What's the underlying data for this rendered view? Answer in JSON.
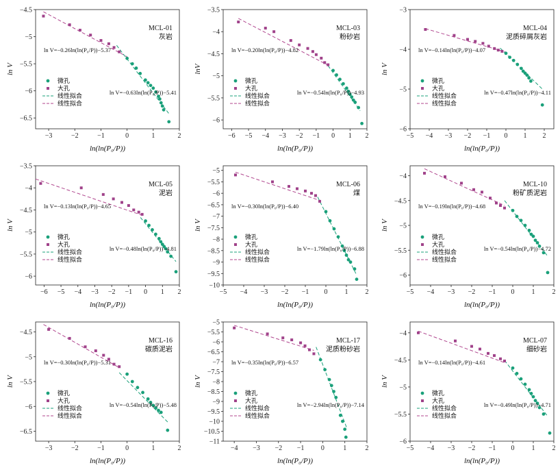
{
  "colors": {
    "micro": "#1aa07a",
    "macro": "#a0428a",
    "fit_micro": "#1aa07a",
    "fit_macro": "#b0468e",
    "axis": "#222222"
  },
  "legend": {
    "micro": "微孔",
    "macro": "大孔",
    "fit1": "线性拟合",
    "fit2": "线性拟合"
  },
  "chart_data": [
    {
      "id": "MCL-01",
      "name": "MCL-01",
      "lithology": "灰岩",
      "type": "scatter",
      "xlabel": "ln(ln(P₀/P))",
      "ylabel": "ln V",
      "xlim": [
        -3.5,
        2
      ],
      "ylim": [
        -6.7,
        -4.5
      ],
      "xticks": [
        -3,
        -2,
        -1,
        0,
        1,
        2
      ],
      "yticks": [
        -6.5,
        -6.0,
        -5.5,
        -5.0,
        -4.5
      ],
      "eq_macro": "ln V=−0.26ln(ln(P₀/P))−5.37",
      "eq_micro": "ln V=−0.63ln(ln(P₀/P))−5.41",
      "macro_points": [
        [
          -3.2,
          -4.62
        ],
        [
          -2.2,
          -4.78
        ],
        [
          -1.8,
          -4.88
        ],
        [
          -1.4,
          -4.97
        ],
        [
          -1.0,
          -5.07
        ],
        [
          -0.7,
          -5.13
        ],
        [
          -0.5,
          -5.2
        ],
        [
          -0.3,
          -5.28
        ]
      ],
      "micro_points": [
        [
          0.0,
          -5.4
        ],
        [
          0.2,
          -5.5
        ],
        [
          0.35,
          -5.58
        ],
        [
          0.5,
          -5.68
        ],
        [
          0.7,
          -5.8
        ],
        [
          0.8,
          -5.85
        ],
        [
          0.9,
          -5.9
        ],
        [
          1.0,
          -5.95
        ],
        [
          1.1,
          -6.02
        ],
        [
          1.2,
          -6.1
        ],
        [
          1.25,
          -6.15
        ],
        [
          1.3,
          -6.22
        ],
        [
          1.35,
          -6.28
        ],
        [
          1.4,
          -6.35
        ],
        [
          1.6,
          -6.57
        ]
      ],
      "fit_macro": [
        [
          -3.2,
          -4.54
        ],
        [
          0.0,
          -5.37
        ]
      ],
      "fit_micro": [
        [
          -0.4,
          -5.16
        ],
        [
          1.6,
          -6.42
        ]
      ]
    },
    {
      "id": "MCL-03",
      "name": "MCL-03",
      "lithology": "粉砂岩",
      "type": "scatter",
      "xlabel": "ln(ln(P₀/P))",
      "ylabel": "lnV",
      "xlim": [
        -6.5,
        2
      ],
      "ylim": [
        -6.2,
        -3.5
      ],
      "xticks": [
        -6,
        -5,
        -4,
        -3,
        -2,
        -1,
        0,
        1,
        2
      ],
      "yticks": [
        -6.0,
        -5.5,
        -5.0,
        -4.5,
        -4.0,
        -3.5
      ],
      "eq_macro": "ln V=−0.20ln(ln(P₀/P))−4.82",
      "eq_micro": "ln V=−0.54ln(ln(P₀/P))−4.93",
      "macro_points": [
        [
          -5.6,
          -3.78
        ],
        [
          -4.0,
          -3.92
        ],
        [
          -3.5,
          -4.0
        ],
        [
          -2.5,
          -4.2
        ],
        [
          -2.0,
          -4.3
        ],
        [
          -1.5,
          -4.38
        ],
        [
          -1.2,
          -4.45
        ],
        [
          -1.0,
          -4.52
        ],
        [
          -0.7,
          -4.6
        ],
        [
          -0.5,
          -4.7
        ],
        [
          -0.3,
          -4.75
        ]
      ],
      "micro_points": [
        [
          0.0,
          -4.88
        ],
        [
          0.2,
          -4.98
        ],
        [
          0.4,
          -5.08
        ],
        [
          0.6,
          -5.18
        ],
        [
          0.8,
          -5.28
        ],
        [
          0.9,
          -5.35
        ],
        [
          1.0,
          -5.42
        ],
        [
          1.1,
          -5.48
        ],
        [
          1.2,
          -5.55
        ],
        [
          1.3,
          -5.6
        ],
        [
          1.5,
          -5.72
        ],
        [
          1.7,
          -6.08
        ]
      ],
      "fit_macro": [
        [
          -5.6,
          -3.7
        ],
        [
          -0.3,
          -4.76
        ]
      ],
      "fit_micro": [
        [
          -0.3,
          -4.77
        ],
        [
          1.6,
          -5.79
        ]
      ]
    },
    {
      "id": "MCL-04",
      "name": "MCL-04",
      "lithology": "泥质碎屑灰岩",
      "type": "scatter",
      "xlabel": "ln(ln(P₀/P))",
      "ylabel": "ln V",
      "xlim": [
        -5,
        2.5
      ],
      "ylim": [
        -6,
        -3
      ],
      "xticks": [
        -5,
        -4,
        -3,
        -2,
        -1,
        0,
        1,
        2
      ],
      "yticks": [
        -6,
        -5,
        -4,
        -3
      ],
      "eq_macro": "ln V=−0.14ln(ln(P₀/P))−4.07",
      "eq_micro": "ln V=−0.47ln(ln(P₀/P))−4.11",
      "macro_points": [
        [
          -4.2,
          -3.5
        ],
        [
          -2.7,
          -3.65
        ],
        [
          -2.0,
          -3.75
        ],
        [
          -1.6,
          -3.8
        ],
        [
          -1.2,
          -3.85
        ],
        [
          -0.9,
          -3.92
        ],
        [
          -0.6,
          -3.98
        ],
        [
          -0.4,
          -4.02
        ],
        [
          -0.2,
          -4.05
        ]
      ],
      "micro_points": [
        [
          0.0,
          -4.1
        ],
        [
          0.2,
          -4.2
        ],
        [
          0.4,
          -4.28
        ],
        [
          0.6,
          -4.38
        ],
        [
          0.8,
          -4.48
        ],
        [
          0.9,
          -4.55
        ],
        [
          1.0,
          -4.6
        ],
        [
          1.1,
          -4.65
        ],
        [
          1.2,
          -4.72
        ],
        [
          1.3,
          -4.8
        ],
        [
          1.9,
          -5.4
        ]
      ],
      "fit_macro": [
        [
          -4.2,
          -3.48
        ],
        [
          0.0,
          -4.07
        ]
      ],
      "fit_micro": [
        [
          -0.3,
          -3.97
        ],
        [
          1.9,
          -5.0
        ]
      ]
    },
    {
      "id": "MCL-05",
      "name": "MCL-05",
      "lithology": "泥岩",
      "type": "scatter",
      "xlabel": "ln(ln(P₀/P))",
      "ylabel": "ln V",
      "xlim": [
        -6.5,
        2
      ],
      "ylim": [
        -6.2,
        -3.5
      ],
      "xticks": [
        -6,
        -5,
        -4,
        -3,
        -2,
        -1,
        0,
        1,
        2
      ],
      "yticks": [
        -6.0,
        -5.5,
        -5.0,
        -4.5,
        -4.0,
        -3.5
      ],
      "eq_macro": "ln V=−0.13ln(ln(P₀/P))−4.65",
      "eq_micro": "ln V=−0.48ln(ln(P₀/P))−4.81",
      "macro_points": [
        [
          -6.2,
          -3.9
        ],
        [
          -3.8,
          -4.0
        ],
        [
          -2.5,
          -4.15
        ],
        [
          -1.9,
          -4.25
        ],
        [
          -1.4,
          -4.33
        ],
        [
          -1.0,
          -4.4
        ],
        [
          -0.7,
          -4.5
        ],
        [
          -0.4,
          -4.55
        ],
        [
          -0.2,
          -4.6
        ]
      ],
      "micro_points": [
        [
          0.0,
          -4.75
        ],
        [
          0.2,
          -4.85
        ],
        [
          0.4,
          -4.95
        ],
        [
          0.6,
          -5.05
        ],
        [
          0.8,
          -5.15
        ],
        [
          0.9,
          -5.22
        ],
        [
          1.0,
          -5.28
        ],
        [
          1.1,
          -5.33
        ],
        [
          1.2,
          -5.38
        ],
        [
          1.3,
          -5.45
        ],
        [
          1.5,
          -5.55
        ],
        [
          1.8,
          -5.9
        ]
      ],
      "fit_macro": [
        [
          -6.5,
          -3.8
        ],
        [
          -0.2,
          -4.62
        ]
      ],
      "fit_micro": [
        [
          -0.3,
          -4.67
        ],
        [
          1.8,
          -5.67
        ]
      ]
    },
    {
      "id": "MCL-06",
      "name": "MCL-06",
      "lithology": "煤",
      "type": "scatter",
      "xlabel": "ln(ln(P₀/P))",
      "ylabel": "ln V",
      "xlim": [
        -5,
        2
      ],
      "ylim": [
        -10,
        -4.8
      ],
      "xticks": [
        -5,
        -4,
        -3,
        -2,
        -1,
        0,
        1,
        2
      ],
      "yticks": [
        -10.0,
        -9.5,
        -9.0,
        -8.5,
        -8.0,
        -7.5,
        -7.0,
        -6.5,
        -6.0,
        -5.5,
        -5.0
      ],
      "eq_macro": "ln V=−0.30ln(ln(P₀/P))−6.40",
      "eq_micro": "ln V=−1.79ln(ln(P₀/P))−6.88",
      "macro_points": [
        [
          -4.4,
          -5.2
        ],
        [
          -2.6,
          -5.5
        ],
        [
          -1.8,
          -5.7
        ],
        [
          -1.4,
          -5.8
        ],
        [
          -1.0,
          -5.9
        ],
        [
          -0.7,
          -6.0
        ],
        [
          -0.5,
          -6.1
        ],
        [
          -0.3,
          -6.35
        ]
      ],
      "micro_points": [
        [
          0.0,
          -6.8
        ],
        [
          0.2,
          -7.2
        ],
        [
          0.4,
          -7.55
        ],
        [
          0.6,
          -7.9
        ],
        [
          0.8,
          -8.3
        ],
        [
          0.9,
          -8.5
        ],
        [
          1.0,
          -8.7
        ],
        [
          1.1,
          -8.9
        ],
        [
          1.2,
          -9.0
        ],
        [
          1.4,
          -9.3
        ],
        [
          1.5,
          -9.75
        ]
      ],
      "fit_macro": [
        [
          -4.4,
          -5.08
        ],
        [
          -0.4,
          -6.28
        ]
      ],
      "fit_micro": [
        [
          -0.4,
          -6.16
        ],
        [
          1.5,
          -9.57
        ]
      ]
    },
    {
      "id": "MCL-10",
      "name": "MCL-10",
      "lithology": "粉矿质泥岩",
      "type": "scatter",
      "xlabel": "ln(ln(P₀/P))",
      "ylabel": "ln V",
      "xlim": [
        -5,
        2
      ],
      "ylim": [
        -6.2,
        -3.8
      ],
      "xticks": [
        -5,
        -4,
        -3,
        -2,
        -1,
        0,
        1,
        2
      ],
      "yticks": [
        -6.0,
        -5.5,
        -5.0,
        -4.5,
        -4.0
      ],
      "eq_macro": "ln V=−0.19ln(ln(P₀/P))−4.68",
      "eq_micro": "ln V=−0.54ln(ln(P₀/P))−4.72",
      "macro_points": [
        [
          -4.3,
          -3.95
        ],
        [
          -3.3,
          -4.02
        ],
        [
          -2.5,
          -4.15
        ],
        [
          -1.9,
          -4.28
        ],
        [
          -1.5,
          -4.33
        ],
        [
          -1.1,
          -4.45
        ],
        [
          -0.8,
          -4.55
        ],
        [
          -0.6,
          -4.6
        ],
        [
          -0.4,
          -4.65
        ]
      ],
      "micro_points": [
        [
          0.0,
          -4.7
        ],
        [
          0.2,
          -4.82
        ],
        [
          0.4,
          -4.9
        ],
        [
          0.6,
          -5.0
        ],
        [
          0.8,
          -5.1
        ],
        [
          0.9,
          -5.18
        ],
        [
          1.0,
          -5.22
        ],
        [
          1.1,
          -5.3
        ],
        [
          1.2,
          -5.35
        ],
        [
          1.3,
          -5.42
        ],
        [
          1.5,
          -5.55
        ],
        [
          1.7,
          -5.95
        ]
      ],
      "fit_macro": [
        [
          -4.3,
          -3.86
        ],
        [
          -0.4,
          -4.6
        ]
      ],
      "fit_micro": [
        [
          -0.4,
          -4.5
        ],
        [
          1.7,
          -5.62
        ]
      ]
    },
    {
      "id": "MCL-16",
      "name": "MCL-16",
      "lithology": "碳质泥岩",
      "type": "scatter",
      "xlabel": "ln(ln(P₀/P))",
      "ylabel": "ln V",
      "xlim": [
        -3.5,
        2
      ],
      "ylim": [
        -6.7,
        -4.3
      ],
      "xticks": [
        -3,
        -2,
        -1,
        0,
        1,
        2
      ],
      "yticks": [
        -6.5,
        -6.0,
        -5.5,
        -5.0,
        -4.5
      ],
      "eq_macro": "ln V=−0.30ln(ln(P₀/P))−5.31",
      "eq_micro": "ln V=−0.54ln(ln(P₀/P))−5.48",
      "macro_points": [
        [
          -3.0,
          -4.45
        ],
        [
          -2.2,
          -4.63
        ],
        [
          -1.6,
          -4.8
        ],
        [
          -1.2,
          -4.88
        ],
        [
          -0.9,
          -4.97
        ],
        [
          -0.7,
          -5.05
        ],
        [
          -0.5,
          -5.15
        ],
        [
          -0.3,
          -5.2
        ]
      ],
      "micro_points": [
        [
          0.0,
          -5.35
        ],
        [
          0.2,
          -5.5
        ],
        [
          0.4,
          -5.62
        ],
        [
          0.6,
          -5.72
        ],
        [
          0.8,
          -5.85
        ],
        [
          0.9,
          -5.92
        ],
        [
          1.0,
          -5.98
        ],
        [
          1.1,
          -6.03
        ],
        [
          1.2,
          -6.08
        ],
        [
          1.3,
          -6.12
        ],
        [
          1.55,
          -6.48
        ]
      ],
      "fit_macro": [
        [
          -3.2,
          -4.35
        ],
        [
          -0.3,
          -5.22
        ]
      ],
      "fit_micro": [
        [
          -0.3,
          -5.32
        ],
        [
          1.6,
          -6.34
        ]
      ]
    },
    {
      "id": "MCL-17",
      "name": "MCL-17",
      "lithology": "泥质粉砂岩",
      "type": "scatter",
      "xlabel": "ln(ln(P₀/P))",
      "ylabel": "ln V",
      "xlim": [
        -4.5,
        2
      ],
      "ylim": [
        -11,
        -5
      ],
      "xticks": [
        -4,
        -3,
        -2,
        -1,
        0,
        1,
        2
      ],
      "yticks": [
        -11.0,
        -10.5,
        -10.0,
        -9.5,
        -9.0,
        -8.5,
        -8.0,
        -7.5,
        -7.0,
        -6.5,
        -6.0,
        -5.5,
        -5.0
      ],
      "eq_macro": "ln V=−0.35ln(ln(P₀/P))−6.57",
      "eq_micro": "ln V=−2.94ln(ln(P₀/P))−7.14",
      "macro_points": [
        [
          -4.0,
          -5.3
        ],
        [
          -2.5,
          -5.6
        ],
        [
          -1.8,
          -5.8
        ],
        [
          -1.4,
          -5.9
        ],
        [
          -1.0,
          -6.05
        ],
        [
          -0.8,
          -6.2
        ],
        [
          -0.6,
          -6.4
        ],
        [
          -0.4,
          -6.6
        ]
      ],
      "micro_points": [
        [
          -0.1,
          -6.9
        ],
        [
          0.1,
          -7.4
        ],
        [
          0.3,
          -7.9
        ],
        [
          0.4,
          -8.2
        ],
        [
          0.5,
          -8.5
        ],
        [
          0.6,
          -8.8
        ],
        [
          0.8,
          -9.7
        ],
        [
          0.9,
          -10.0
        ],
        [
          1.0,
          -10.4
        ],
        [
          1.05,
          -10.8
        ]
      ],
      "fit_macro": [
        [
          -4.0,
          -5.17
        ],
        [
          -0.4,
          -6.43
        ]
      ],
      "fit_micro": [
        [
          -0.3,
          -6.26
        ],
        [
          1.1,
          -10.37
        ]
      ]
    },
    {
      "id": "MCL-07",
      "name": "MCL-07",
      "lithology": "细砂岩",
      "type": "scatter",
      "xlabel": "ln(ln(P₀/P))",
      "ylabel": "ln V",
      "xlim": [
        -5,
        2
      ],
      "ylim": [
        -6,
        -3.8
      ],
      "xticks": [
        -5,
        -4,
        -3,
        -2,
        -1,
        0,
        1,
        2
      ],
      "yticks": [
        -6.0,
        -5.5,
        -5.0,
        -4.5,
        -4.0
      ],
      "eq_macro": "ln V=−0.14ln(ln(P₀/P))−4.61",
      "eq_micro": "ln V=−0.49ln(ln(P₀/P))−4.71",
      "macro_points": [
        [
          -4.6,
          -4.0
        ],
        [
          -2.8,
          -4.15
        ],
        [
          -2.0,
          -4.25
        ],
        [
          -1.6,
          -4.3
        ],
        [
          -1.2,
          -4.38
        ],
        [
          -0.9,
          -4.42
        ],
        [
          -0.6,
          -4.48
        ],
        [
          -0.4,
          -4.52
        ]
      ],
      "micro_points": [
        [
          0.0,
          -4.65
        ],
        [
          0.2,
          -4.75
        ],
        [
          0.4,
          -4.85
        ],
        [
          0.6,
          -4.95
        ],
        [
          0.8,
          -5.05
        ],
        [
          0.9,
          -5.12
        ],
        [
          1.0,
          -5.18
        ],
        [
          1.1,
          -5.25
        ],
        [
          1.2,
          -5.3
        ],
        [
          1.3,
          -5.38
        ],
        [
          1.5,
          -5.5
        ],
        [
          1.8,
          -5.85
        ]
      ],
      "fit_macro": [
        [
          -4.6,
          -3.97
        ],
        [
          -0.4,
          -4.55
        ]
      ],
      "fit_micro": [
        [
          -0.4,
          -4.51
        ],
        [
          1.7,
          -5.54
        ]
      ]
    }
  ]
}
